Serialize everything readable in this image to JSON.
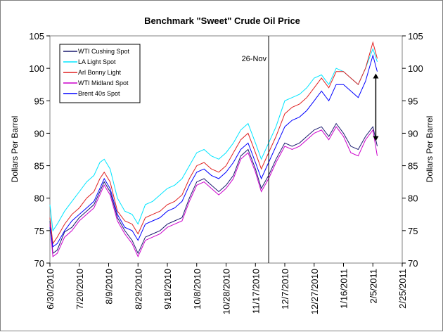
{
  "chart_data": {
    "type": "line",
    "title": "Benchmark \"Sweet\" Crude Oil Price",
    "ylabel_left": "Dollars Per Barrel",
    "ylabel_right": "Dollars Per Barrel",
    "ylim": [
      70,
      105
    ],
    "yticks": [
      "70",
      "75",
      "80",
      "85",
      "90",
      "95",
      "100",
      "105"
    ],
    "xlim": [
      "2010-06-30",
      "2011-02-25"
    ],
    "xticks": [
      "6/30/2010",
      "7/20/2010",
      "8/9/2010",
      "8/29/2010",
      "9/18/2010",
      "10/8/2010",
      "10/28/2010",
      "11/17/2010",
      "12/7/2010",
      "12/27/2010",
      "1/16/2011",
      "2/5/2011",
      "2/25/2011"
    ],
    "grid": false,
    "legend_position": "top-left",
    "annotations": [
      {
        "type": "vline",
        "x": "2010-11-26",
        "label": "26-Nov"
      },
      {
        "type": "double-arrow",
        "x": "2011-02-07",
        "y_from": 88.8,
        "y_to": 99.2
      }
    ],
    "series": [
      {
        "name": "WTI Cushing Spot",
        "color": "#1a1a6e",
        "x": [
          "2010-06-30",
          "2010-07-02",
          "2010-07-05",
          "2010-07-10",
          "2010-07-15",
          "2010-07-20",
          "2010-07-25",
          "2010-07-30",
          "2010-08-03",
          "2010-08-06",
          "2010-08-10",
          "2010-08-15",
          "2010-08-20",
          "2010-08-25",
          "2010-08-29",
          "2010-09-03",
          "2010-09-08",
          "2010-09-13",
          "2010-09-18",
          "2010-09-23",
          "2010-09-28",
          "2010-10-03",
          "2010-10-08",
          "2010-10-13",
          "2010-10-18",
          "2010-10-23",
          "2010-10-28",
          "2010-11-02",
          "2010-11-07",
          "2010-11-12",
          "2010-11-17",
          "2010-11-21",
          "2010-11-26",
          "2010-12-01",
          "2010-12-07",
          "2010-12-12",
          "2010-12-17",
          "2010-12-22",
          "2010-12-27",
          "2011-01-01",
          "2011-01-06",
          "2011-01-11",
          "2011-01-16",
          "2011-01-21",
          "2011-01-26",
          "2011-01-31",
          "2011-02-05",
          "2011-02-08"
        ],
        "values": [
          76.5,
          71.5,
          72.0,
          74.8,
          75.5,
          77.0,
          78.0,
          79.0,
          81.0,
          82.5,
          81.0,
          77.0,
          75.0,
          73.5,
          71.5,
          74.0,
          74.5,
          75.0,
          76.0,
          76.5,
          77.0,
          80.0,
          82.5,
          83.0,
          82.0,
          81.0,
          82.0,
          83.5,
          86.5,
          87.5,
          84.5,
          81.5,
          83.5,
          86.0,
          88.5,
          88.0,
          88.5,
          89.5,
          90.5,
          91.0,
          89.5,
          91.5,
          90.0,
          88.0,
          87.5,
          89.5,
          91.0,
          88.0
        ]
      },
      {
        "name": "LA Light Spot",
        "color": "#00e5ff",
        "x": [
          "2010-06-30",
          "2010-07-02",
          "2010-07-05",
          "2010-07-10",
          "2010-07-15",
          "2010-07-20",
          "2010-07-25",
          "2010-07-30",
          "2010-08-03",
          "2010-08-06",
          "2010-08-10",
          "2010-08-15",
          "2010-08-20",
          "2010-08-25",
          "2010-08-29",
          "2010-09-03",
          "2010-09-08",
          "2010-09-13",
          "2010-09-18",
          "2010-09-23",
          "2010-09-28",
          "2010-10-03",
          "2010-10-08",
          "2010-10-13",
          "2010-10-18",
          "2010-10-23",
          "2010-10-28",
          "2010-11-02",
          "2010-11-07",
          "2010-11-12",
          "2010-11-17",
          "2010-11-21",
          "2010-11-26",
          "2010-12-01",
          "2010-12-07",
          "2010-12-12",
          "2010-12-17",
          "2010-12-22",
          "2010-12-27",
          "2011-01-01",
          "2011-01-06",
          "2011-01-11",
          "2011-01-16",
          "2011-01-21",
          "2011-01-26",
          "2011-01-31",
          "2011-02-05",
          "2011-02-08"
        ],
        "values": [
          79.0,
          75.0,
          76.0,
          78.0,
          79.5,
          81.0,
          82.5,
          83.5,
          85.5,
          86.0,
          84.5,
          80.0,
          78.0,
          77.5,
          76.0,
          79.0,
          79.5,
          80.5,
          81.5,
          82.0,
          83.0,
          85.0,
          87.0,
          87.5,
          86.5,
          86.0,
          87.0,
          88.5,
          90.5,
          91.5,
          88.5,
          86.0,
          88.5,
          91.0,
          95.0,
          95.5,
          96.0,
          97.0,
          98.5,
          99.0,
          97.5,
          100.0,
          99.5,
          98.5,
          97.5,
          100.0,
          103.0,
          101.0
        ]
      },
      {
        "name": "Arl Bonny Light",
        "color": "#e02020",
        "x": [
          "2010-06-30",
          "2010-07-02",
          "2010-07-05",
          "2010-07-10",
          "2010-07-15",
          "2010-07-20",
          "2010-07-25",
          "2010-07-30",
          "2010-08-03",
          "2010-08-06",
          "2010-08-10",
          "2010-08-15",
          "2010-08-20",
          "2010-08-25",
          "2010-08-29",
          "2010-09-03",
          "2010-09-08",
          "2010-09-13",
          "2010-09-18",
          "2010-09-23",
          "2010-09-28",
          "2010-10-03",
          "2010-10-08",
          "2010-10-13",
          "2010-10-18",
          "2010-10-23",
          "2010-10-28",
          "2010-11-02",
          "2010-11-07",
          "2010-11-12",
          "2010-11-17",
          "2010-11-21",
          "2010-11-26",
          "2010-12-01",
          "2010-12-07",
          "2010-12-12",
          "2010-12-17",
          "2010-12-22",
          "2010-12-27",
          "2011-01-01",
          "2011-01-06",
          "2011-01-11",
          "2011-01-16",
          "2011-01-21",
          "2011-01-26",
          "2011-01-31",
          "2011-02-05",
          "2011-02-08"
        ],
        "values": [
          77.0,
          73.0,
          74.0,
          76.0,
          77.5,
          78.5,
          80.0,
          81.0,
          83.0,
          84.0,
          82.5,
          78.0,
          76.5,
          76.0,
          74.5,
          77.0,
          77.5,
          78.0,
          79.0,
          79.5,
          80.5,
          83.0,
          85.0,
          85.5,
          84.5,
          84.0,
          85.0,
          87.0,
          89.0,
          90.0,
          87.0,
          84.5,
          87.0,
          89.5,
          93.0,
          94.0,
          94.5,
          95.5,
          97.0,
          98.5,
          97.0,
          99.5,
          99.5,
          98.5,
          97.5,
          100.0,
          104.0,
          101.5
        ]
      },
      {
        "name": "WTI Midland Spot",
        "color": "#cc00cc",
        "x": [
          "2010-06-30",
          "2010-07-02",
          "2010-07-05",
          "2010-07-10",
          "2010-07-15",
          "2010-07-20",
          "2010-07-25",
          "2010-07-30",
          "2010-08-03",
          "2010-08-06",
          "2010-08-10",
          "2010-08-15",
          "2010-08-20",
          "2010-08-25",
          "2010-08-29",
          "2010-09-03",
          "2010-09-08",
          "2010-09-13",
          "2010-09-18",
          "2010-09-23",
          "2010-09-28",
          "2010-10-03",
          "2010-10-08",
          "2010-10-13",
          "2010-10-18",
          "2010-10-23",
          "2010-10-28",
          "2010-11-02",
          "2010-11-07",
          "2010-11-12",
          "2010-11-17",
          "2010-11-21",
          "2010-11-26",
          "2010-12-01",
          "2010-12-07",
          "2010-12-12",
          "2010-12-17",
          "2010-12-22",
          "2010-12-27",
          "2011-01-01",
          "2011-01-06",
          "2011-01-11",
          "2011-01-16",
          "2011-01-21",
          "2011-01-26",
          "2011-01-31",
          "2011-02-05",
          "2011-02-08"
        ],
        "values": [
          76.0,
          71.0,
          71.5,
          74.0,
          75.0,
          76.5,
          77.5,
          78.5,
          80.5,
          82.0,
          80.5,
          76.5,
          74.5,
          73.0,
          71.0,
          73.5,
          74.0,
          74.5,
          75.5,
          76.0,
          76.5,
          79.5,
          82.0,
          82.5,
          81.5,
          80.5,
          81.5,
          83.0,
          86.0,
          87.0,
          84.0,
          81.0,
          83.0,
          85.5,
          88.0,
          87.5,
          88.0,
          89.0,
          90.0,
          90.5,
          89.0,
          91.0,
          89.5,
          87.0,
          86.5,
          89.0,
          90.5,
          86.5
        ]
      },
      {
        "name": "Brent 40s Spot",
        "color": "#0000ff",
        "x": [
          "2010-06-30",
          "2010-07-02",
          "2010-07-05",
          "2010-07-10",
          "2010-07-15",
          "2010-07-20",
          "2010-07-25",
          "2010-07-30",
          "2010-08-03",
          "2010-08-06",
          "2010-08-10",
          "2010-08-15",
          "2010-08-20",
          "2010-08-25",
          "2010-08-29",
          "2010-09-03",
          "2010-09-08",
          "2010-09-13",
          "2010-09-18",
          "2010-09-23",
          "2010-09-28",
          "2010-10-03",
          "2010-10-08",
          "2010-10-13",
          "2010-10-18",
          "2010-10-23",
          "2010-10-28",
          "2010-11-02",
          "2010-11-07",
          "2010-11-12",
          "2010-11-17",
          "2010-11-21",
          "2010-11-26",
          "2010-12-01",
          "2010-12-07",
          "2010-12-12",
          "2010-12-17",
          "2010-12-22",
          "2010-12-27",
          "2011-01-01",
          "2011-01-06",
          "2011-01-11",
          "2011-01-16",
          "2011-01-21",
          "2011-01-26",
          "2011-01-31",
          "2011-02-05",
          "2011-02-08"
        ],
        "values": [
          75.5,
          72.5,
          73.0,
          75.0,
          76.5,
          77.5,
          78.5,
          79.5,
          81.5,
          83.0,
          81.5,
          77.5,
          75.5,
          75.0,
          73.5,
          76.0,
          76.5,
          77.0,
          78.0,
          78.5,
          79.5,
          82.0,
          84.0,
          84.5,
          83.5,
          83.0,
          84.0,
          85.5,
          87.5,
          88.5,
          85.5,
          83.0,
          85.5,
          88.0,
          91.0,
          92.0,
          92.5,
          93.5,
          95.0,
          96.5,
          95.0,
          97.5,
          97.5,
          96.5,
          95.5,
          98.0,
          102.0,
          99.5
        ]
      }
    ]
  }
}
